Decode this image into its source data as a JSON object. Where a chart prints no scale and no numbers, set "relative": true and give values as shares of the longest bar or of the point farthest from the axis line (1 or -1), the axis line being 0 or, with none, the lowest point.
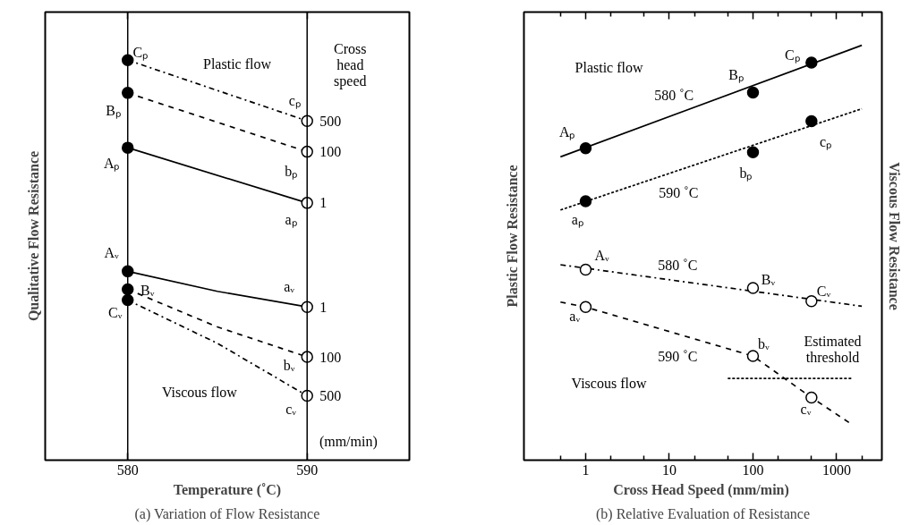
{
  "chart_data": [
    {
      "type": "line",
      "title": "(a) Variation of Flow Resistance",
      "xlabel": "Temperature (˚C)",
      "ylabel": "Qualitative Flow Resistance",
      "relative": true,
      "tick_labels": "x",
      "xlim": [
        575.4,
        595.7
      ],
      "xticks": [
        580,
        590
      ],
      "ref_lines": [
        {
          "axis": "x",
          "value": 580
        },
        {
          "axis": "x",
          "value": 590
        }
      ],
      "series": [
        {
          "name": "500",
          "line_style": "dashdot",
          "color": "#000000",
          "x": [
            580,
            590
          ],
          "values": [
            1.0,
            0.848
          ]
        },
        {
          "name": "100",
          "line_style": "dashed",
          "color": "#000000",
          "x": [
            580,
            590
          ],
          "values": [
            0.918,
            0.771
          ]
        },
        {
          "name": "1",
          "line_style": "solid",
          "color": "#000000",
          "x": [
            580,
            590
          ],
          "values": [
            0.781,
            0.643
          ]
        },
        {
          "name": "1",
          "line_style": "solid",
          "color": "#000000",
          "x": [
            580,
            585,
            590
          ],
          "values": [
            0.472,
            0.422,
            0.383
          ]
        },
        {
          "name": "100",
          "line_style": "dashed",
          "color": "#000000",
          "x": [
            580,
            585,
            590
          ],
          "values": [
            0.427,
            0.333,
            0.258
          ]
        },
        {
          "name": "500",
          "line_style": "dashdot",
          "color": "#000000",
          "x": [
            580,
            585,
            590
          ],
          "values": [
            0.4,
            0.292,
            0.161
          ]
        },
        {
          "type": "scatter",
          "marker": "circle",
          "color": "#000000",
          "x": [
            580,
            580,
            580,
            580,
            580,
            580
          ],
          "values": [
            1.0,
            0.918,
            0.781,
            0.472,
            0.427,
            0.4
          ]
        },
        {
          "type": "scatter",
          "marker": "circle",
          "color": "#ffffff",
          "x": [
            590,
            590,
            590,
            590,
            590,
            590
          ],
          "values": [
            0.848,
            0.771,
            0.643,
            0.383,
            0.258,
            0.161
          ]
        }
      ],
      "annotations": [
        "Cₚ",
        "Bₚ",
        "Aₚ",
        "cₚ",
        "bₚ",
        "aₚ",
        "Aᵥ",
        "Bᵥ",
        "Cᵥ",
        "aᵥ",
        "bᵥ",
        "cᵥ",
        "Plastic flow",
        "Viscous flow",
        "Cross\nhead\nspeed",
        "(mm/min)"
      ]
    },
    {
      "type": "line",
      "title": "(b) Relative Evaluation of Resistance",
      "xlabel": "Cross Head Speed  (mm/min)",
      "ylabel": "Plastic Flow Resistance",
      "y2label": "Viscous Flow Resistance",
      "relative": true,
      "tick_labels": "x",
      "log": "x",
      "xlim": [
        0.183,
        3470
      ],
      "xticks": [
        {
          "value": 0.5,
          "label": null
        },
        1,
        {
          "value": 2,
          "label": null
        },
        {
          "value": 5,
          "label": null
        },
        10,
        {
          "value": 20,
          "label": null
        },
        {
          "value": 50,
          "label": null
        },
        100,
        {
          "value": 200,
          "label": null
        },
        {
          "value": 500,
          "label": null
        },
        1000,
        {
          "value": 2000,
          "label": null
        }
      ],
      "series": [
        {
          "line_style": "solid",
          "color": "#000000",
          "x": [
            0.5,
            2000
          ],
          "values": [
            0.731,
            1.0
          ]
        },
        {
          "line_style": "dotted",
          "color": "#000000",
          "x": [
            0.5,
            2000
          ],
          "values": [
            0.603,
            0.847
          ]
        },
        {
          "line_style": "dashdot",
          "color": "#000000",
          "x": [
            0.5,
            2000
          ],
          "values": [
            0.471,
            0.371
          ]
        },
        {
          "line_style": "dashed",
          "color": "#000000",
          "x": [
            0.5,
            1,
            100,
            500,
            1470
          ],
          "values": [
            0.381,
            0.369,
            0.251,
            0.151,
            0.088
          ]
        },
        {
          "line_style": "dotted",
          "color": "#000000",
          "x": [
            50,
            1500
          ],
          "values": [
            0.197,
            0.197
          ]
        },
        {
          "type": "scatter",
          "marker": "circle",
          "color": "#000000",
          "x": [
            1,
            100,
            500,
            1,
            100,
            500
          ],
          "values": [
            0.752,
            0.886,
            0.958,
            0.624,
            0.742,
            0.817
          ]
        },
        {
          "type": "scatter",
          "marker": "circle",
          "color": "#ffffff",
          "x": [
            1,
            100,
            500,
            1,
            100,
            500
          ],
          "values": [
            0.459,
            0.415,
            0.383,
            0.369,
            0.251,
            0.151
          ]
        }
      ],
      "annotations": [
        "Aₚ",
        "Bₚ",
        "Cₚ",
        "aₚ",
        "bₚ",
        "cₚ",
        "Aᵥ",
        "Bᵥ",
        "Cᵥ",
        "aᵥ",
        "bᵥ",
        "cᵥ",
        "Plastic flow",
        "580 ˚C",
        "590 ˚C",
        "580 ˚C",
        "590 ˚C",
        "Viscous flow",
        "Estimated\nthreshold"
      ]
    }
  ]
}
